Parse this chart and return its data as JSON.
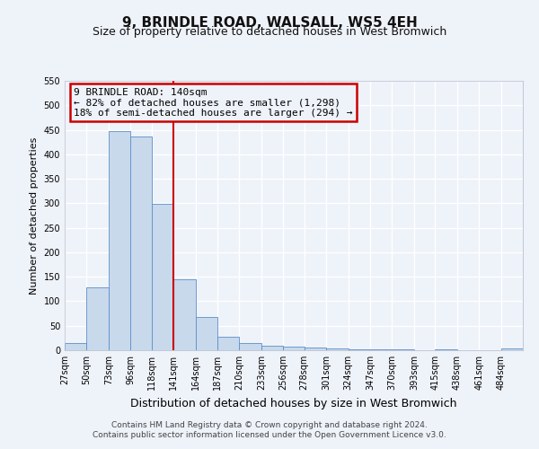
{
  "title": "9, BRINDLE ROAD, WALSALL, WS5 4EH",
  "subtitle": "Size of property relative to detached houses in West Bromwich",
  "xlabel": "Distribution of detached houses by size in West Bromwich",
  "ylabel": "Number of detached properties",
  "bin_edges": [
    27,
    50,
    73,
    96,
    118,
    141,
    164,
    187,
    210,
    233,
    256,
    278,
    301,
    324,
    347,
    370,
    393,
    415,
    438,
    461,
    484,
    507
  ],
  "bin_counts": [
    15,
    128,
    447,
    437,
    298,
    145,
    68,
    28,
    14,
    9,
    7,
    5,
    4,
    2,
    1,
    1,
    0,
    1,
    0,
    0,
    3
  ],
  "bar_color": "#c8d9ec",
  "bar_edge_color": "#5b8fc9",
  "property_line_x": 141,
  "property_line_color": "#cc0000",
  "annotation_title": "9 BRINDLE ROAD: 140sqm",
  "annotation_line1": "← 82% of detached houses are smaller (1,298)",
  "annotation_line2": "18% of semi-detached houses are larger (294) →",
  "annotation_box_color": "#cc0000",
  "ylim": [
    0,
    550
  ],
  "yticks": [
    0,
    50,
    100,
    150,
    200,
    250,
    300,
    350,
    400,
    450,
    500,
    550
  ],
  "tick_labels": [
    "27sqm",
    "50sqm",
    "73sqm",
    "96sqm",
    "118sqm",
    "141sqm",
    "164sqm",
    "187sqm",
    "210sqm",
    "233sqm",
    "256sqm",
    "278sqm",
    "301sqm",
    "324sqm",
    "347sqm",
    "370sqm",
    "393sqm",
    "415sqm",
    "438sqm",
    "461sqm",
    "484sqm"
  ],
  "footer_line1": "Contains HM Land Registry data © Crown copyright and database right 2024.",
  "footer_line2": "Contains public sector information licensed under the Open Government Licence v3.0.",
  "background_color": "#eef2f9",
  "grid_color": "#ffffff",
  "title_fontsize": 11,
  "subtitle_fontsize": 9,
  "xlabel_fontsize": 9,
  "ylabel_fontsize": 8,
  "tick_fontsize": 7,
  "annotation_fontsize": 8,
  "footer_fontsize": 6.5
}
